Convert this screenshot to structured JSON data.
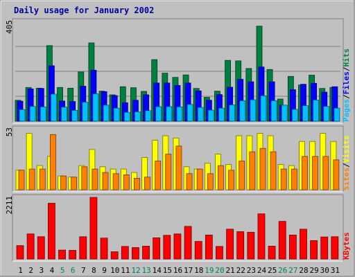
{
  "chart_data": {
    "type": "bar",
    "title": "Daily usage for January 2002",
    "categories": [
      "1",
      "2",
      "3",
      "4",
      "5",
      "6",
      "7",
      "8",
      "9",
      "10",
      "11",
      "12",
      "13",
      "14",
      "15",
      "16",
      "17",
      "18",
      "19",
      "20",
      "21",
      "22",
      "23",
      "24",
      "25",
      "26",
      "27",
      "28",
      "29",
      "30",
      "31"
    ],
    "weekend_days": [
      "5",
      "6",
      "12",
      "13",
      "19",
      "20",
      "26",
      "27"
    ],
    "panels": [
      {
        "name": "hits-files-pages",
        "ymax_label": "405",
        "ylim": [
          0,
          405
        ],
        "axis_label_parts": [
          "Pages",
          "Files",
          "Hits"
        ],
        "series": [
          {
            "name": "Hits",
            "color": "#008040",
            "values": [
              85,
              137,
              134,
              307,
              137,
              134,
              200,
              318,
              122,
              107,
              140,
              136,
              121,
              250,
              195,
              178,
              188,
              133,
              97,
              122,
              247,
              245,
              214,
              386,
              210,
              90,
              182,
              147,
              187,
              133,
              137
            ]
          },
          {
            "name": "Files",
            "color": "#0000ff",
            "values": [
              81,
              131,
              133,
              225,
              82,
              80,
              142,
              207,
              120,
              104,
              75,
              85,
              107,
              155,
              155,
              145,
              155,
              123,
              85,
              108,
              138,
              170,
              160,
              220,
              160,
              65,
              128,
              150,
              154,
              118,
              140
            ]
          },
          {
            "name": "Pages",
            "color": "#00c0ff",
            "values": [
              47,
              60,
              58,
              110,
              57,
              44,
              77,
              111,
              65,
              53,
              36,
              38,
              43,
              59,
              59,
              58,
              68,
              56,
              45,
              53,
              66,
              83,
              87,
              103,
              83,
              65,
              48,
              63,
              86,
              60,
              53
            ]
          }
        ]
      },
      {
        "name": "visits-sites",
        "ymax_label": "53",
        "ylim": [
          0,
          53
        ],
        "axis_label_parts": [
          "Sites",
          "Visits"
        ],
        "series": [
          {
            "name": "Visits",
            "color": "#ffff00",
            "values": [
              17,
              49,
              21,
              29,
              12,
              11,
              21,
              35,
              20,
              18,
              18,
              15,
              28,
              43,
              47,
              45,
              20,
              18,
              23,
              31,
              22,
              47,
              47,
              49,
              47,
              22,
              21,
              42,
              42,
              49,
              42
            ]
          },
          {
            "name": "Sites",
            "color": "#ff8000",
            "values": [
              17,
              18,
              18,
              48,
              12,
              11,
              20,
              18,
              15,
              14,
              13,
              10,
              11,
              25,
              31,
              38,
              14,
              18,
              14,
              21,
              17,
              25,
              33,
              36,
              33,
              18,
              18,
              29,
              29,
              29,
              26
            ]
          }
        ]
      },
      {
        "name": "kbytes",
        "ymax_label": "2211",
        "ylim": [
          0,
          2211
        ],
        "axis_label_parts": [
          "KBytes"
        ],
        "series": [
          {
            "name": "KBytes",
            "color": "#ff0000",
            "values": [
              480,
              900,
              800,
              2000,
              320,
              310,
              800,
              2211,
              750,
              260,
              450,
              410,
              460,
              760,
              850,
              900,
              1170,
              630,
              860,
              450,
              1070,
              980,
              960,
              1620,
              460,
              1350,
              860,
              1070,
              660,
              790,
              800
            ]
          }
        ]
      }
    ]
  }
}
